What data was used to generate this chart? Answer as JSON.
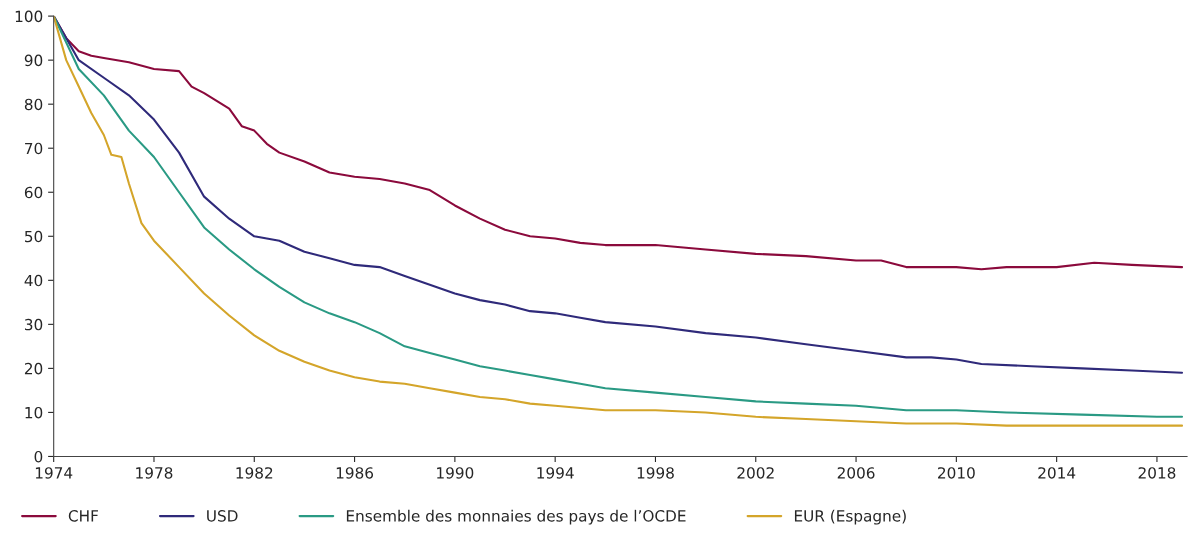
{
  "chart_data": {
    "type": "line",
    "xlim": [
      1974,
      2019.2
    ],
    "ylim": [
      0,
      100
    ],
    "xticks": [
      1974,
      1978,
      1982,
      1986,
      1990,
      1994,
      1998,
      2002,
      2006,
      2010,
      2014,
      2018
    ],
    "yticks": [
      0,
      10,
      20,
      30,
      40,
      50,
      60,
      70,
      80,
      90,
      100
    ],
    "grid": false,
    "legend": "bottom",
    "marker": "none",
    "line_style": "solid",
    "series": [
      {
        "name": "CHF",
        "color": "#8b0a3c",
        "x": [
          1974,
          1974.5,
          1975,
          1975.5,
          1976,
          1977,
          1978,
          1979,
          1979.5,
          1980,
          1981,
          1981.5,
          1982,
          1982.5,
          1983,
          1984,
          1985,
          1986,
          1987,
          1988,
          1989,
          1990,
          1991,
          1992,
          1993,
          1994,
          1995,
          1996,
          1998,
          2000,
          2002,
          2004,
          2006,
          2007,
          2008,
          2009,
          2010,
          2011,
          2012,
          2014,
          2015.5,
          2017,
          2019
        ],
        "values": [
          100,
          95,
          92,
          91,
          90.5,
          89.5,
          88,
          87.5,
          84,
          82.5,
          79,
          75,
          74,
          71,
          69,
          67,
          64.5,
          63.5,
          63,
          62,
          60.5,
          57,
          54,
          51.5,
          50,
          49.5,
          48.5,
          48,
          48,
          47,
          46,
          45.5,
          44.5,
          44.5,
          43,
          43,
          43,
          42.5,
          43,
          43,
          44,
          43.5,
          43
        ]
      },
      {
        "name": "USD",
        "color": "#2f2a7a",
        "x": [
          1974,
          1975,
          1976,
          1977,
          1978,
          1979,
          1980,
          1981,
          1982,
          1983,
          1984,
          1985,
          1986,
          1987,
          1988,
          1989,
          1990,
          1991,
          1992,
          1993,
          1994,
          1995,
          1996,
          1998,
          2000,
          2002,
          2004,
          2006,
          2008,
          2009,
          2010,
          2011,
          2013,
          2015,
          2017,
          2019
        ],
        "values": [
          100,
          90,
          86,
          82,
          76.5,
          69,
          59,
          54,
          50,
          49,
          46.5,
          45,
          43.5,
          43,
          41,
          39,
          37,
          35.5,
          34.5,
          33,
          32.5,
          31.5,
          30.5,
          29.5,
          28,
          27,
          25.5,
          24,
          22.5,
          22.5,
          22,
          21,
          20.5,
          20,
          19.5,
          19
        ]
      },
      {
        "name": "Ensemble des monnaies des pays de l’OCDE",
        "color": "#2a9a84",
        "x": [
          1974,
          1975,
          1976,
          1977,
          1978,
          1979,
          1980,
          1981,
          1982,
          1983,
          1984,
          1985,
          1986,
          1987,
          1988,
          1989,
          1990,
          1991,
          1992,
          1993,
          1994,
          1995,
          1996,
          1998,
          2000,
          2002,
          2004,
          2006,
          2008,
          2010,
          2012,
          2015,
          2018,
          2019
        ],
        "values": [
          100,
          88,
          82,
          74,
          68,
          60,
          52,
          47,
          42.5,
          38.5,
          35,
          32.5,
          30.5,
          28,
          25,
          23.5,
          22,
          20.5,
          19.5,
          18.5,
          17.5,
          16.5,
          15.5,
          14.5,
          13.5,
          12.5,
          12,
          11.5,
          10.5,
          10.5,
          10,
          9.5,
          9,
          9
        ]
      },
      {
        "name": "EUR (Espagne)",
        "color": "#d4a52a",
        "x": [
          1974,
          1974.5,
          1975,
          1975.5,
          1976,
          1976.3,
          1976.7,
          1977,
          1977.5,
          1978,
          1979,
          1980,
          1981,
          1982,
          1983,
          1984,
          1985,
          1986,
          1987,
          1988,
          1989,
          1990,
          1991,
          1992,
          1993,
          1994,
          1995,
          1996,
          1998,
          2000,
          2002,
          2004,
          2006,
          2008,
          2010,
          2012,
          2015,
          2018,
          2019
        ],
        "values": [
          100,
          90,
          84,
          78,
          73,
          68.5,
          68,
          62,
          53,
          49,
          43,
          37,
          32,
          27.5,
          24,
          21.5,
          19.5,
          18,
          17,
          16.5,
          15.5,
          14.5,
          13.5,
          13,
          12,
          11.5,
          11,
          10.5,
          10.5,
          10,
          9,
          8.5,
          8,
          7.5,
          7.5,
          7,
          7,
          7,
          7
        ]
      }
    ]
  }
}
